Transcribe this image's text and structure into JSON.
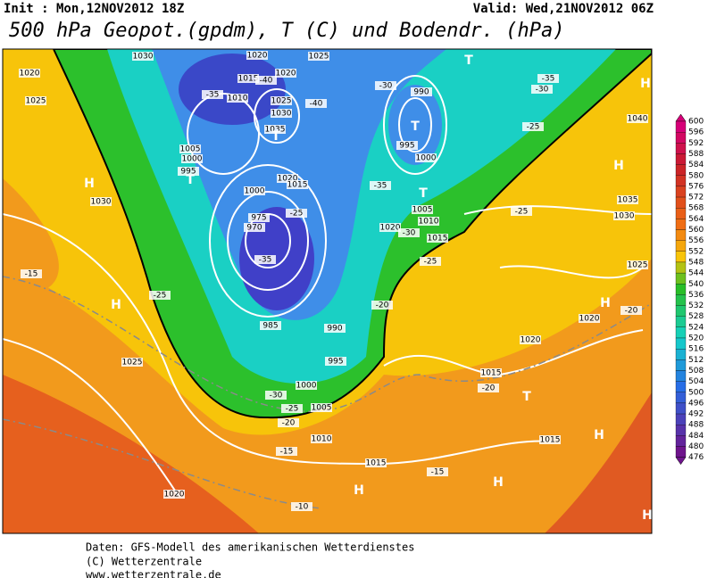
{
  "header": {
    "init": "Init : Mon,12NOV2012 18Z",
    "valid": "Valid: Wed,21NOV2012 06Z",
    "title": "500 hPa Geopot.(gpdm), T (C) und Bodendr. (hPa)"
  },
  "map": {
    "pressure_labels": [
      "1020",
      "1025",
      "1030",
      "1020",
      "1025",
      "1015",
      "1020",
      "1010",
      "1025",
      "1030",
      "1035",
      "1005",
      "1000",
      "995",
      "1020",
      "1015",
      "1000",
      "975",
      "970",
      "985",
      "990",
      "995",
      "1000",
      "1005",
      "1010",
      "1015",
      "1020",
      "1025",
      "1030",
      "990",
      "995",
      "1000",
      "1005",
      "1010",
      "1015",
      "1020",
      "1040",
      "1035",
      "1030",
      "1025",
      "1020",
      "1020",
      "1015",
      "1015"
    ],
    "temperature_labels": [
      "-35",
      "-40",
      "-40",
      "-30",
      "-35",
      "-30",
      "-25",
      "-35",
      "-25",
      "-35",
      "-30",
      "-25",
      "-20",
      "-25",
      "-20",
      "-15",
      "-25",
      "-30",
      "-25",
      "-20",
      "-15",
      "-15",
      "-20",
      "-10"
    ],
    "highs": [
      "H",
      "H",
      "H",
      "H",
      "H",
      "H",
      "H",
      "H",
      "H"
    ],
    "lows": [
      "T",
      "T",
      "T",
      "T",
      "T",
      "T"
    ]
  },
  "colorbar": {
    "labels": [
      600,
      596,
      592,
      588,
      584,
      580,
      576,
      572,
      568,
      564,
      560,
      556,
      552,
      548,
      544,
      540,
      536,
      532,
      528,
      524,
      520,
      516,
      512,
      508,
      504,
      500,
      496,
      492,
      488,
      484,
      480,
      476
    ]
  },
  "footer": {
    "line1": "Daten: GFS-Modell des amerikanischen Wetterdienstes",
    "line2": "(C) Wetterzentrale",
    "line3": "www.wetterzentrale.de"
  }
}
